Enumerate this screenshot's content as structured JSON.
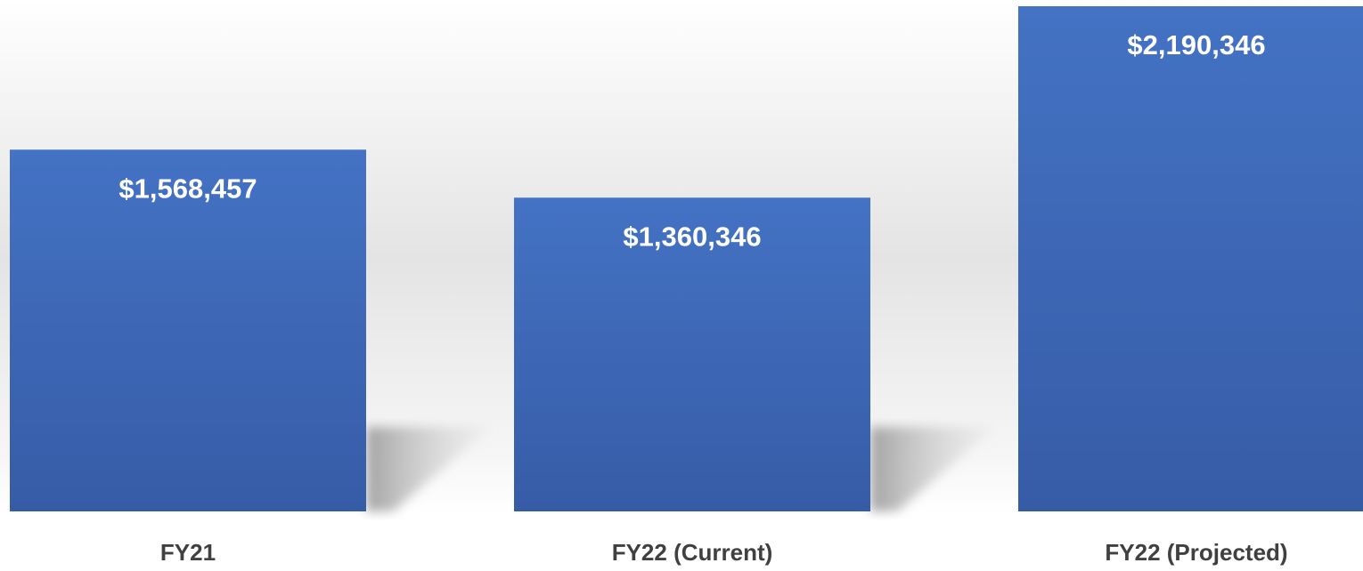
{
  "chart_data": {
    "type": "bar",
    "categories": [
      "FY21",
      "FY22 (Current)",
      "FY22 (Projected)"
    ],
    "values": [
      1568457,
      1360346,
      2190346
    ],
    "value_labels": [
      "$1,568,457",
      "$1,360,346",
      "$2,190,346"
    ],
    "color": "#4472c4"
  }
}
